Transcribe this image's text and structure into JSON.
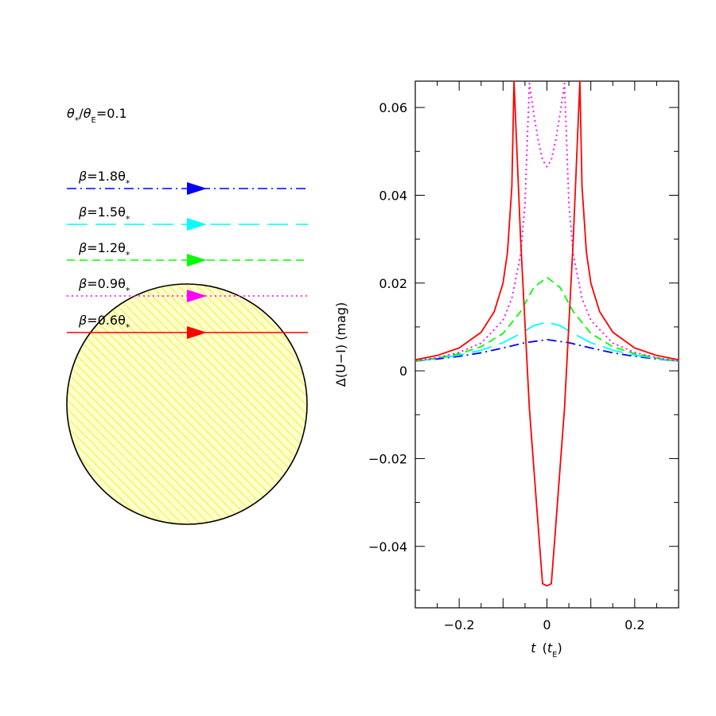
{
  "left_panel": {
    "ratio": {
      "num": "θ",
      "num_sub": "*",
      "slash": "/",
      "den": "θ",
      "den_sub": "E",
      "value": "=0.1"
    },
    "source_color": "#ffff00",
    "tracks": [
      {
        "beta_text": "β",
        "eq_text": "=1.8θ",
        "sub": "*",
        "color": "#0000ff",
        "style": "dash-dot"
      },
      {
        "beta_text": "β",
        "eq_text": "=1.5θ",
        "sub": "*",
        "color": "#00ffff",
        "style": "long-dash"
      },
      {
        "beta_text": "β",
        "eq_text": "=1.2θ",
        "sub": "*",
        "color": "#00ff00",
        "style": "dash"
      },
      {
        "beta_text": "β",
        "eq_text": "=0.9θ",
        "sub": "*",
        "color": "#ff00ff",
        "style": "dotted"
      },
      {
        "beta_text": "β",
        "eq_text": "=0.6θ",
        "sub": "*",
        "color": "#ff0000",
        "style": "solid"
      }
    ]
  },
  "chart_data": {
    "type": "line",
    "xlim": [
      -0.3,
      0.3
    ],
    "ylim": [
      -0.054,
      0.066
    ],
    "x_ticks": [
      "−0.2",
      "0",
      "0.2"
    ],
    "x_tick_values": [
      -0.2,
      0,
      0.2
    ],
    "y_ticks": [
      "−0.04",
      "−0.02",
      "0",
      "0.02",
      "0.04",
      "0.06"
    ],
    "y_tick_values": [
      -0.04,
      -0.02,
      0,
      0.02,
      0.04,
      0.06
    ],
    "xlabel": {
      "t": "t",
      "paren_open": "(",
      "te": "t",
      "te_sub": "E",
      "paren_close": ")"
    },
    "ylabel": "Δ(U−I) (mag)",
    "series": [
      {
        "color": "#0000ff",
        "style": "dash-dot",
        "x": [
          -0.3,
          -0.25,
          -0.2,
          -0.15,
          -0.1,
          -0.05,
          0,
          0.05,
          0.1,
          0.15,
          0.2,
          0.25,
          0.3
        ],
        "y": [
          0.0022,
          0.0027,
          0.0033,
          0.0041,
          0.0052,
          0.0064,
          0.0071,
          0.0064,
          0.0052,
          0.0041,
          0.0033,
          0.0027,
          0.0022
        ]
      },
      {
        "color": "#00ffff",
        "style": "long-dash",
        "x": [
          -0.3,
          -0.25,
          -0.2,
          -0.15,
          -0.1,
          -0.06,
          -0.03,
          0,
          0.03,
          0.06,
          0.1,
          0.15,
          0.2,
          0.25,
          0.3
        ],
        "y": [
          0.0022,
          0.0028,
          0.0036,
          0.0047,
          0.0064,
          0.0085,
          0.0103,
          0.0111,
          0.0103,
          0.0085,
          0.0064,
          0.0047,
          0.0036,
          0.0028,
          0.0022
        ]
      },
      {
        "color": "#00ff00",
        "style": "dash",
        "x": [
          -0.3,
          -0.25,
          -0.2,
          -0.15,
          -0.1,
          -0.06,
          -0.03,
          0,
          0.03,
          0.06,
          0.1,
          0.15,
          0.2,
          0.25,
          0.3
        ],
        "y": [
          0.0022,
          0.0029,
          0.0039,
          0.0055,
          0.0085,
          0.0135,
          0.019,
          0.0213,
          0.019,
          0.0135,
          0.0085,
          0.0055,
          0.0039,
          0.0029,
          0.0022
        ]
      },
      {
        "color": "#ff00ff",
        "style": "dotted",
        "x": [
          -0.3,
          -0.25,
          -0.2,
          -0.15,
          -0.1,
          -0.08,
          -0.06,
          -0.05,
          -0.04,
          -0.03,
          -0.02,
          -0.01,
          0,
          0.01,
          0.02,
          0.03,
          0.04,
          0.05,
          0.06,
          0.08,
          0.1,
          0.15,
          0.2,
          0.25,
          0.3
        ],
        "y": [
          0.0023,
          0.003,
          0.0042,
          0.0063,
          0.0115,
          0.0165,
          0.0265,
          0.038,
          0.0655,
          0.0585,
          0.0525,
          0.048,
          0.0465,
          0.048,
          0.0525,
          0.0585,
          0.0655,
          0.038,
          0.0265,
          0.0165,
          0.0115,
          0.0063,
          0.0042,
          0.003,
          0.0022
        ]
      },
      {
        "color": "#ff0000",
        "style": "solid",
        "x": [
          -0.3,
          -0.25,
          -0.2,
          -0.15,
          -0.12,
          -0.1,
          -0.09,
          -0.08,
          -0.075,
          -0.06,
          -0.04,
          -0.02,
          -0.01,
          0,
          0.01,
          0.02,
          0.04,
          0.06,
          0.075,
          0.08,
          0.09,
          0.1,
          0.12,
          0.15,
          0.2,
          0.25,
          0.3
        ],
        "y": [
          0.0025,
          0.0035,
          0.0052,
          0.0088,
          0.0135,
          0.02,
          0.027,
          0.042,
          0.066,
          0.03,
          -0.0085,
          -0.0355,
          -0.0485,
          -0.049,
          -0.0485,
          -0.0355,
          -0.0085,
          0.03,
          0.066,
          0.042,
          0.027,
          0.02,
          0.0135,
          0.0088,
          0.0052,
          0.0035,
          0.0025
        ]
      }
    ]
  }
}
